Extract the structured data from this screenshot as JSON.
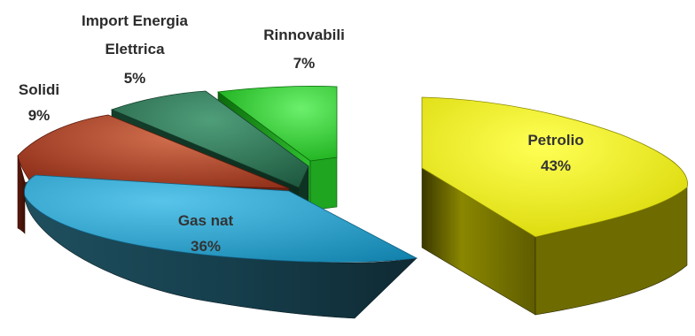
{
  "chart_data": {
    "type": "pie",
    "style": "3d-exploded",
    "slices": [
      {
        "label": "Petrolio",
        "percent_label": "43%",
        "value": 43,
        "color": "#f2f000"
      },
      {
        "label": "Gas nat",
        "percent_label": "36%",
        "value": 36,
        "color": "#2aa4cf"
      },
      {
        "label": "Solidi",
        "percent_label": "9%",
        "value": 9,
        "color": "#b8452a"
      },
      {
        "label": "Import Energia Elettrica",
        "label_lines": [
          "Import Energia",
          "Elettrica"
        ],
        "percent_label": "5%",
        "value": 5,
        "color": "#2f7a5a"
      },
      {
        "label": "Rinnovabili",
        "percent_label": "7%",
        "value": 7,
        "color": "#1fc21f"
      }
    ]
  }
}
